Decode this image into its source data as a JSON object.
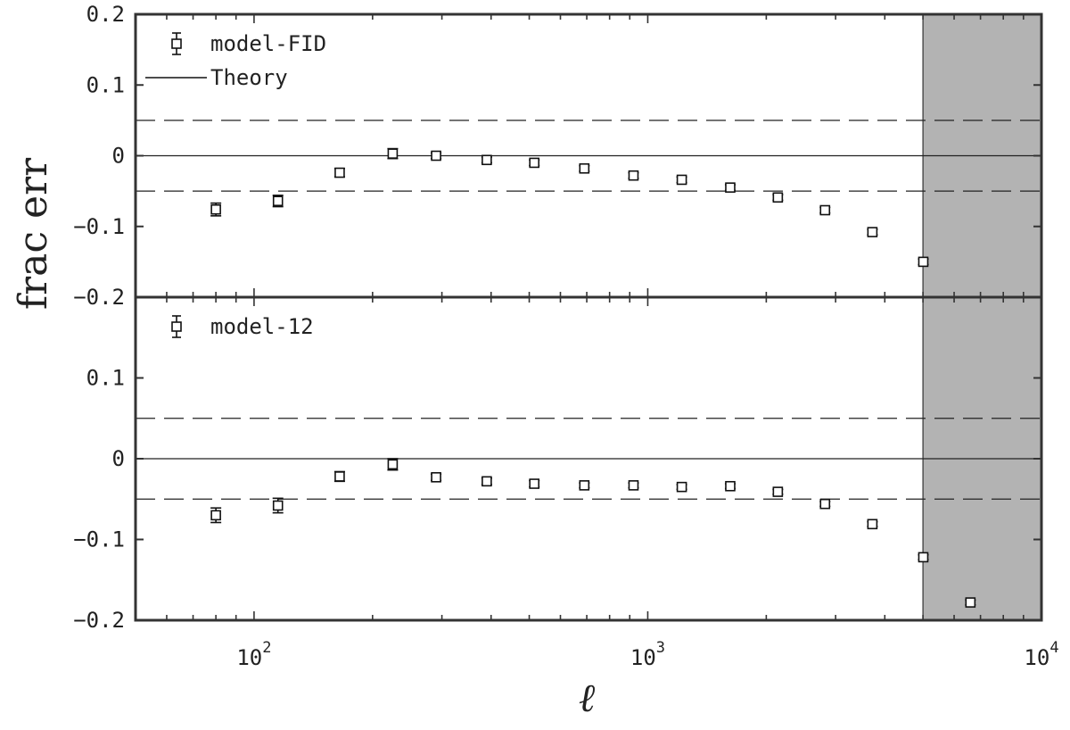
{
  "chart_data": {
    "type": "scatter",
    "xlabel": "ℓ",
    "ylabel": "frac err",
    "xscale": "log",
    "xlim": [
      50,
      10000
    ],
    "xticks": [
      {
        "value": 100,
        "base": "10",
        "exp": "2"
      },
      {
        "value": 1000,
        "base": "10",
        "exp": "3"
      },
      {
        "value": 10000,
        "base": "10",
        "exp": "4"
      }
    ],
    "shaded_region": {
      "x_from": 5000,
      "x_to": 10000,
      "color": "#b3b3b3"
    },
    "reference_lines": {
      "solid": 0,
      "dashed": [
        0.05,
        -0.05
      ]
    },
    "panels": [
      {
        "ylim": [
          -0.2,
          0.2
        ],
        "yticks": [
          {
            "value": 0.2,
            "label": "0.2"
          },
          {
            "value": 0.1,
            "label": "0.1"
          },
          {
            "value": 0,
            "label": "0"
          },
          {
            "value": -0.1,
            "label": "−0.1"
          },
          {
            "value": -0.2,
            "label": "−0.2"
          }
        ],
        "legend": [
          {
            "label": "model-FID",
            "marker": "square-errorbar"
          },
          {
            "label": "Theory",
            "marker": "line"
          }
        ],
        "series": [
          {
            "name": "model-FID",
            "x": [
              80,
              115,
              165,
              225,
              290,
              390,
              515,
              690,
              920,
              1220,
              1620,
              2140,
              2820,
              3720,
              5010
            ],
            "y": [
              -0.076,
              -0.064,
              -0.024,
              0.003,
              0.0,
              -0.006,
              -0.01,
              -0.018,
              -0.028,
              -0.034,
              -0.045,
              -0.059,
              -0.077,
              -0.108,
              -0.15
            ],
            "err": [
              0.009,
              0.008,
              0.006,
              0.007,
              0.004,
              0.004,
              0.004,
              0.004,
              0.004,
              0.004,
              0.004,
              0.004,
              0.004,
              0.004,
              0.004
            ]
          }
        ]
      },
      {
        "ylim": [
          -0.2,
          0.2
        ],
        "yticks": [
          {
            "value": 0.1,
            "label": "0.1"
          },
          {
            "value": 0,
            "label": "0"
          },
          {
            "value": -0.1,
            "label": "−0.1"
          },
          {
            "value": -0.2,
            "label": "−0.2"
          }
        ],
        "legend": [
          {
            "label": "model-12",
            "marker": "square-errorbar"
          }
        ],
        "series": [
          {
            "name": "model-12",
            "x": [
              80,
              115,
              165,
              225,
              290,
              390,
              515,
              690,
              920,
              1220,
              1620,
              2140,
              2820,
              3720,
              5010,
              6600
            ],
            "y": [
              -0.07,
              -0.058,
              -0.022,
              -0.007,
              -0.023,
              -0.028,
              -0.031,
              -0.033,
              -0.033,
              -0.035,
              -0.034,
              -0.041,
              -0.056,
              -0.081,
              -0.122,
              -0.178
            ],
            "err": [
              0.009,
              0.009,
              0.006,
              0.007,
              0.004,
              0.004,
              0.004,
              0.003,
              0.003,
              0.003,
              0.003,
              0.003,
              0.003,
              0.003,
              0.003,
              0.003
            ]
          }
        ]
      }
    ]
  }
}
